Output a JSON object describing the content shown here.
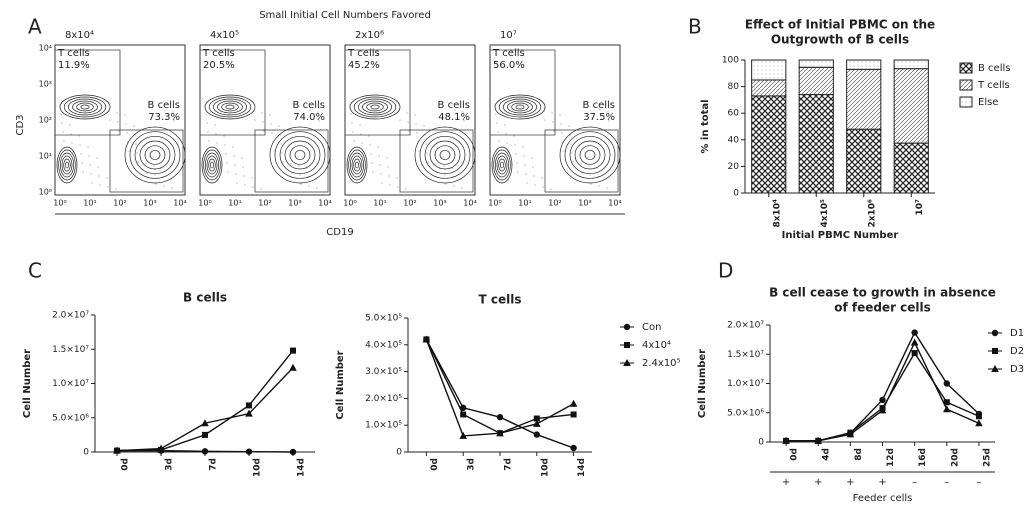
{
  "panel_letters": [
    "A",
    "B",
    "C",
    "D"
  ],
  "flow_figure": {
    "title": "Small Initial Cell Numbers Favored",
    "y_axis_label": "CD3",
    "x_axis_label": "CD19",
    "axis_ticks": [
      "10⁰",
      "10¹",
      "10²",
      "10³",
      "10⁴"
    ],
    "panels": [
      {
        "label": "8x10⁴",
        "t_gate": "T cells",
        "t_percent": "11.9%",
        "b_gate": "B cells",
        "b_percent": "73.3%"
      },
      {
        "label": "4x10⁵",
        "t_gate": "T cells",
        "t_percent": "20.5%",
        "b_gate": "B cells",
        "b_percent": "74.0%"
      },
      {
        "label": "2x10⁶",
        "t_gate": "T cells",
        "t_percent": "45.2%",
        "b_gate": "B cells",
        "b_percent": "48.1%"
      },
      {
        "label": "10⁷",
        "t_gate": "T cells",
        "t_percent": "56.0%",
        "b_gate": "B cells",
        "b_percent": "37.5%"
      }
    ]
  },
  "chart_data": [
    {
      "type": "bar",
      "title": [
        "Effect of Initial PBMC on the",
        "Outgrowth of B cells"
      ],
      "x_axis_label": "Initial PBMC Number",
      "y_axis_label": "% in total",
      "categories": [
        "8x10⁴",
        "4x10⁵",
        "2x10⁶",
        "10⁷"
      ],
      "ylim": [
        0,
        100
      ],
      "yticks": [
        0,
        20,
        40,
        60,
        80,
        100
      ],
      "legend": "right",
      "series": [
        {
          "name": "B cells",
          "pattern": "cross",
          "values": [
            73,
            74,
            48,
            37.5
          ]
        },
        {
          "name": "T cells",
          "pattern": "diag",
          "values": [
            12,
            20.5,
            45,
            56
          ]
        },
        {
          "name": "Else",
          "pattern": "dots",
          "values": [
            15,
            5.5,
            7,
            6.5
          ]
        }
      ]
    },
    {
      "type": "line",
      "title": "B cells",
      "y_axis_label": "Cell Number",
      "categories": [
        "0d",
        "3d",
        "7d",
        "10d",
        "14d"
      ],
      "ylim": [
        0,
        20000000
      ],
      "yticks": [
        0,
        {
          "value": 5000000,
          "label": "5.0×10⁶"
        },
        {
          "value": 10000000,
          "label": "1.0×10⁷"
        },
        {
          "value": 15000000,
          "label": "1.5×10⁷"
        },
        {
          "value": 20000000,
          "label": "2.0×10⁷"
        }
      ],
      "series": [
        {
          "name": "Con",
          "marker": "circle",
          "values": [
            200000,
            200000,
            100000,
            50000,
            0
          ]
        },
        {
          "name": "4x10⁴",
          "marker": "square",
          "values": [
            200000,
            300000,
            2500000,
            6800000,
            14800000
          ]
        },
        {
          "name": "2.4x10⁵",
          "marker": "triangle",
          "values": [
            200000,
            500000,
            4200000,
            5600000,
            12300000
          ]
        }
      ]
    },
    {
      "type": "line",
      "title": "T cells",
      "y_axis_label": "Cell Number",
      "categories": [
        "0d",
        "3d",
        "7d",
        "10d",
        "14d"
      ],
      "ylim": [
        0,
        500000
      ],
      "legend": "right",
      "yticks": [
        0,
        {
          "value": 100000,
          "label": "1.0×10⁵"
        },
        {
          "value": 200000,
          "label": "2.0×10⁵"
        },
        {
          "value": 300000,
          "label": "3.0×10⁵"
        },
        {
          "value": 400000,
          "label": "4.0×10⁵"
        },
        {
          "value": 500000,
          "label": "5.0×10⁵"
        }
      ],
      "series": [
        {
          "name": "Con",
          "marker": "circle",
          "values": [
            420000,
            165000,
            130000,
            65000,
            15000
          ]
        },
        {
          "name": "4x10⁴",
          "marker": "square",
          "values": [
            420000,
            140000,
            70000,
            125000,
            140000
          ]
        },
        {
          "name": "2.4x10⁵",
          "marker": "triangle",
          "values": [
            420000,
            60000,
            70000,
            105000,
            180000
          ]
        }
      ]
    },
    {
      "type": "line",
      "title": [
        "B cell cease to growth in absence",
        "of feeder cells"
      ],
      "y_axis_label": "Cell Number",
      "categories": [
        "0d",
        "4d",
        "8d",
        "12d",
        "16d",
        "20d",
        "25d"
      ],
      "ylim": [
        0,
        20000000
      ],
      "legend": "right",
      "yticks": [
        0,
        {
          "value": 5000000,
          "label": "5.0×10⁶"
        },
        {
          "value": 10000000,
          "label": "1.0×10⁷"
        },
        {
          "value": 15000000,
          "label": "1.5×10⁷"
        },
        {
          "value": 20000000,
          "label": "2.0×10⁷"
        }
      ],
      "row_labels": [
        "+",
        "+",
        "+",
        "+",
        "–",
        "–",
        "–"
      ],
      "row_title": "Feeder cells",
      "series": [
        {
          "name": "D1",
          "marker": "circle",
          "values": [
            200000,
            200000,
            1500000,
            7200000,
            18700000,
            10000000,
            4800000
          ]
        },
        {
          "name": "D2",
          "marker": "square",
          "values": [
            200000,
            200000,
            1600000,
            5800000,
            15200000,
            6800000,
            4400000
          ]
        },
        {
          "name": "D3",
          "marker": "triangle",
          "values": [
            200000,
            200000,
            1300000,
            5400000,
            17000000,
            5600000,
            3200000
          ]
        }
      ]
    }
  ]
}
